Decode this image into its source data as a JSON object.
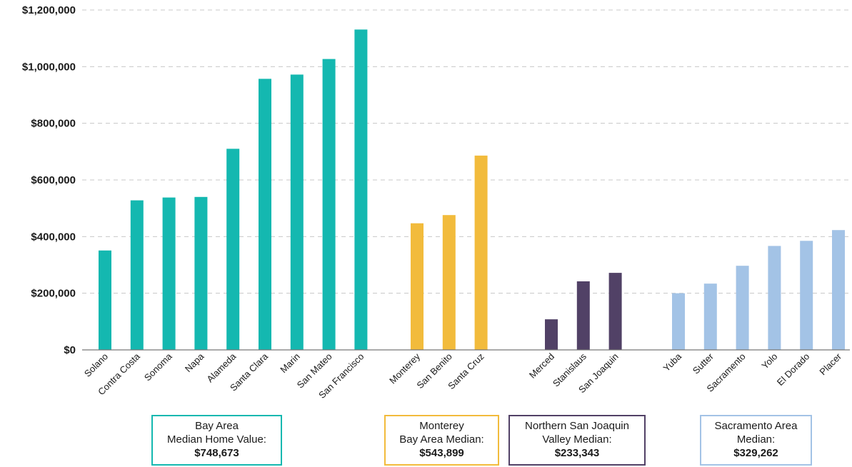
{
  "chart_data": {
    "type": "bar",
    "ylim": [
      0,
      1200000
    ],
    "yticks": [
      "$0",
      "$200,000",
      "$400,000",
      "$600,000",
      "$800,000",
      "$1,000,000",
      "$1,200,000"
    ],
    "ytick_values": [
      0,
      200000,
      400000,
      600000,
      800000,
      1000000,
      1200000
    ],
    "grid": true,
    "groups": [
      {
        "color": "#14b8b0",
        "categories": [
          "Solano",
          "Contra Costa",
          "Sonoma",
          "Napa",
          "Alameda",
          "Santa Clara",
          "Marin",
          "San Mateo",
          "San Francisco"
        ],
        "values": [
          351000,
          528000,
          538000,
          540000,
          710000,
          957000,
          972000,
          1027000,
          1131000
        ]
      },
      {
        "color": "#f2bb3c",
        "categories": [
          "Monterey",
          "San Benito",
          "Santa Cruz"
        ],
        "values": [
          447000,
          476000,
          686000
        ]
      },
      {
        "color": "#514166",
        "categories": [
          "Merced",
          "Stanislaus",
          "San Joaquin"
        ],
        "values": [
          108000,
          242000,
          272000
        ]
      },
      {
        "color": "#a3c3e6",
        "categories": [
          "Yuba",
          "Sutter",
          "Sacramento",
          "Yolo",
          "El Dorado",
          "Placer"
        ],
        "values": [
          200000,
          234000,
          297000,
          367000,
          385000,
          423000
        ]
      }
    ]
  },
  "median_boxes": [
    {
      "color": "#14b8b0",
      "lines": [
        "Bay Area",
        "Median Home Value:"
      ],
      "value": "$748,673"
    },
    {
      "color": "#f2bb3c",
      "lines": [
        "Monterey",
        "Bay Area Median:"
      ],
      "value": "$543,899"
    },
    {
      "color": "#514166",
      "lines": [
        "Northern San Joaquin",
        "Valley Median:"
      ],
      "value": "$233,343"
    },
    {
      "color": "#a3c3e6",
      "lines": [
        "Sacramento Area",
        "Median:"
      ],
      "value": "$329,262"
    }
  ]
}
